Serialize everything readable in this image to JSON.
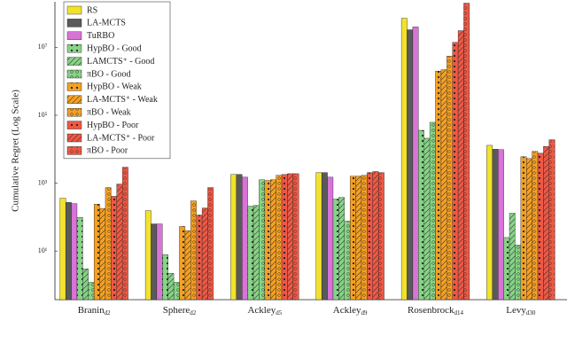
{
  "chart_data": {
    "type": "bar",
    "ylabel": "Cumulative Regret (Log Scale)",
    "log_y": true,
    "ylim": [
      0.37,
      220000000
    ],
    "yticks": [
      {
        "value": 10,
        "label": "10¹"
      },
      {
        "value": 1000,
        "label": "10³"
      },
      {
        "value": 100000,
        "label": "10⁵"
      },
      {
        "value": 10000000,
        "label": "10⁷"
      }
    ],
    "categories": [
      "Branin",
      "Sphere",
      "Ackley",
      "Ackley",
      "Rosenbrock",
      "Levy"
    ],
    "category_subscripts": [
      "d2",
      "d2",
      "d5",
      "d9",
      "d14",
      "d30"
    ],
    "legend": "upper left",
    "series": [
      {
        "name": "RS",
        "color": "#f2e32a",
        "pattern": "none",
        "values": [
          360,
          155,
          1800,
          2050,
          72000000,
          13000
        ]
      },
      {
        "name": "LA-MCTS",
        "color": "#5a5a5a",
        "pattern": "none",
        "values": [
          270,
          63,
          1800,
          2050,
          33000000,
          10000
        ]
      },
      {
        "name": "TuRBO",
        "color": "#d873d8",
        "pattern": "none",
        "values": [
          250,
          63,
          1500,
          1500,
          40000000,
          9700
        ]
      },
      {
        "name": "HypBO - Good",
        "color": "#86d486",
        "pattern": "stars",
        "values": [
          98,
          7.9,
          210,
          340,
          36000,
          25
        ]
      },
      {
        "name": "LAMCTS⁺ - Good",
        "color": "#86d486",
        "pattern": "hatch",
        "values": [
          3,
          2.2,
          220,
          380,
          21000,
          130
        ]
      },
      {
        "name": "πBO - Good",
        "color": "#86d486",
        "pattern": "circles",
        "values": [
          1.2,
          1.2,
          1260,
          76,
          62000,
          15
        ]
      },
      {
        "name": "HypBO - Weak",
        "color": "#f5a023",
        "pattern": "stars",
        "values": [
          240,
          53,
          1200,
          1600,
          2000000,
          6000
        ]
      },
      {
        "name": "LA-MCTS⁺ - Weak",
        "color": "#f5a023",
        "pattern": "hatch",
        "values": [
          180,
          40,
          1260,
          1600,
          2200000,
          5300
        ]
      },
      {
        "name": "πBO - Weak",
        "color": "#f5a023",
        "pattern": "circles",
        "values": [
          740,
          300,
          1700,
          1700,
          5500000,
          8600
        ]
      },
      {
        "name": "HypBO - Poor",
        "color": "#ef5843",
        "pattern": "stars",
        "values": [
          410,
          115,
          1800,
          2050,
          14000000,
          7600
        ]
      },
      {
        "name": "LA-MCTS⁺ - Poor",
        "color": "#ef5843",
        "pattern": "hatch",
        "values": [
          940,
          185,
          1900,
          2200,
          31000000,
          12000
        ]
      },
      {
        "name": "πBO - Poor",
        "color": "#ef5843",
        "pattern": "circles",
        "values": [
          2950,
          740,
          1900,
          2050,
          200000000,
          19000
        ]
      }
    ]
  }
}
